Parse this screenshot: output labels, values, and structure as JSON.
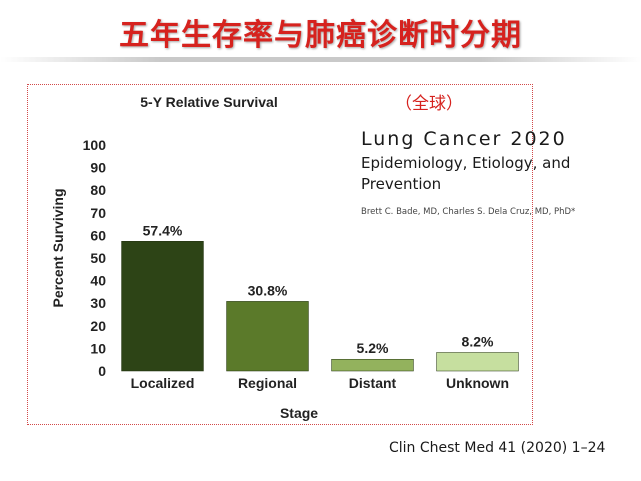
{
  "slide": {
    "title": "五年生存率与肺癌诊断时分期",
    "region_note": "（全球）"
  },
  "paper": {
    "title": "Lung Cancer 2020",
    "subtitle": "Epidemiology, Etiology, and Prevention",
    "authors": "Brett C. Bade, MD, Charles S. Dela Cruz, MD, PhD*"
  },
  "citation": "Clin Chest Med 41 (2020) 1–24",
  "chart_data": {
    "type": "bar",
    "title": "5-Y Relative Survival",
    "xlabel": "Stage",
    "ylabel": "Percent Surviving",
    "categories": [
      "Localized",
      "Regional",
      "Distant",
      "Unknown"
    ],
    "values": [
      57.4,
      30.8,
      5.2,
      8.2
    ],
    "value_labels": [
      "57.4%",
      "30.8%",
      "5.2%",
      "8.2%"
    ],
    "ylim": [
      0,
      100
    ],
    "yticks": [
      0,
      10,
      20,
      30,
      40,
      50,
      60,
      70,
      80,
      90,
      100
    ],
    "grid": false,
    "legend": "none",
    "colors": [
      "#2d4416",
      "#5b7a2a",
      "#93b25d",
      "#c6df9f"
    ]
  }
}
